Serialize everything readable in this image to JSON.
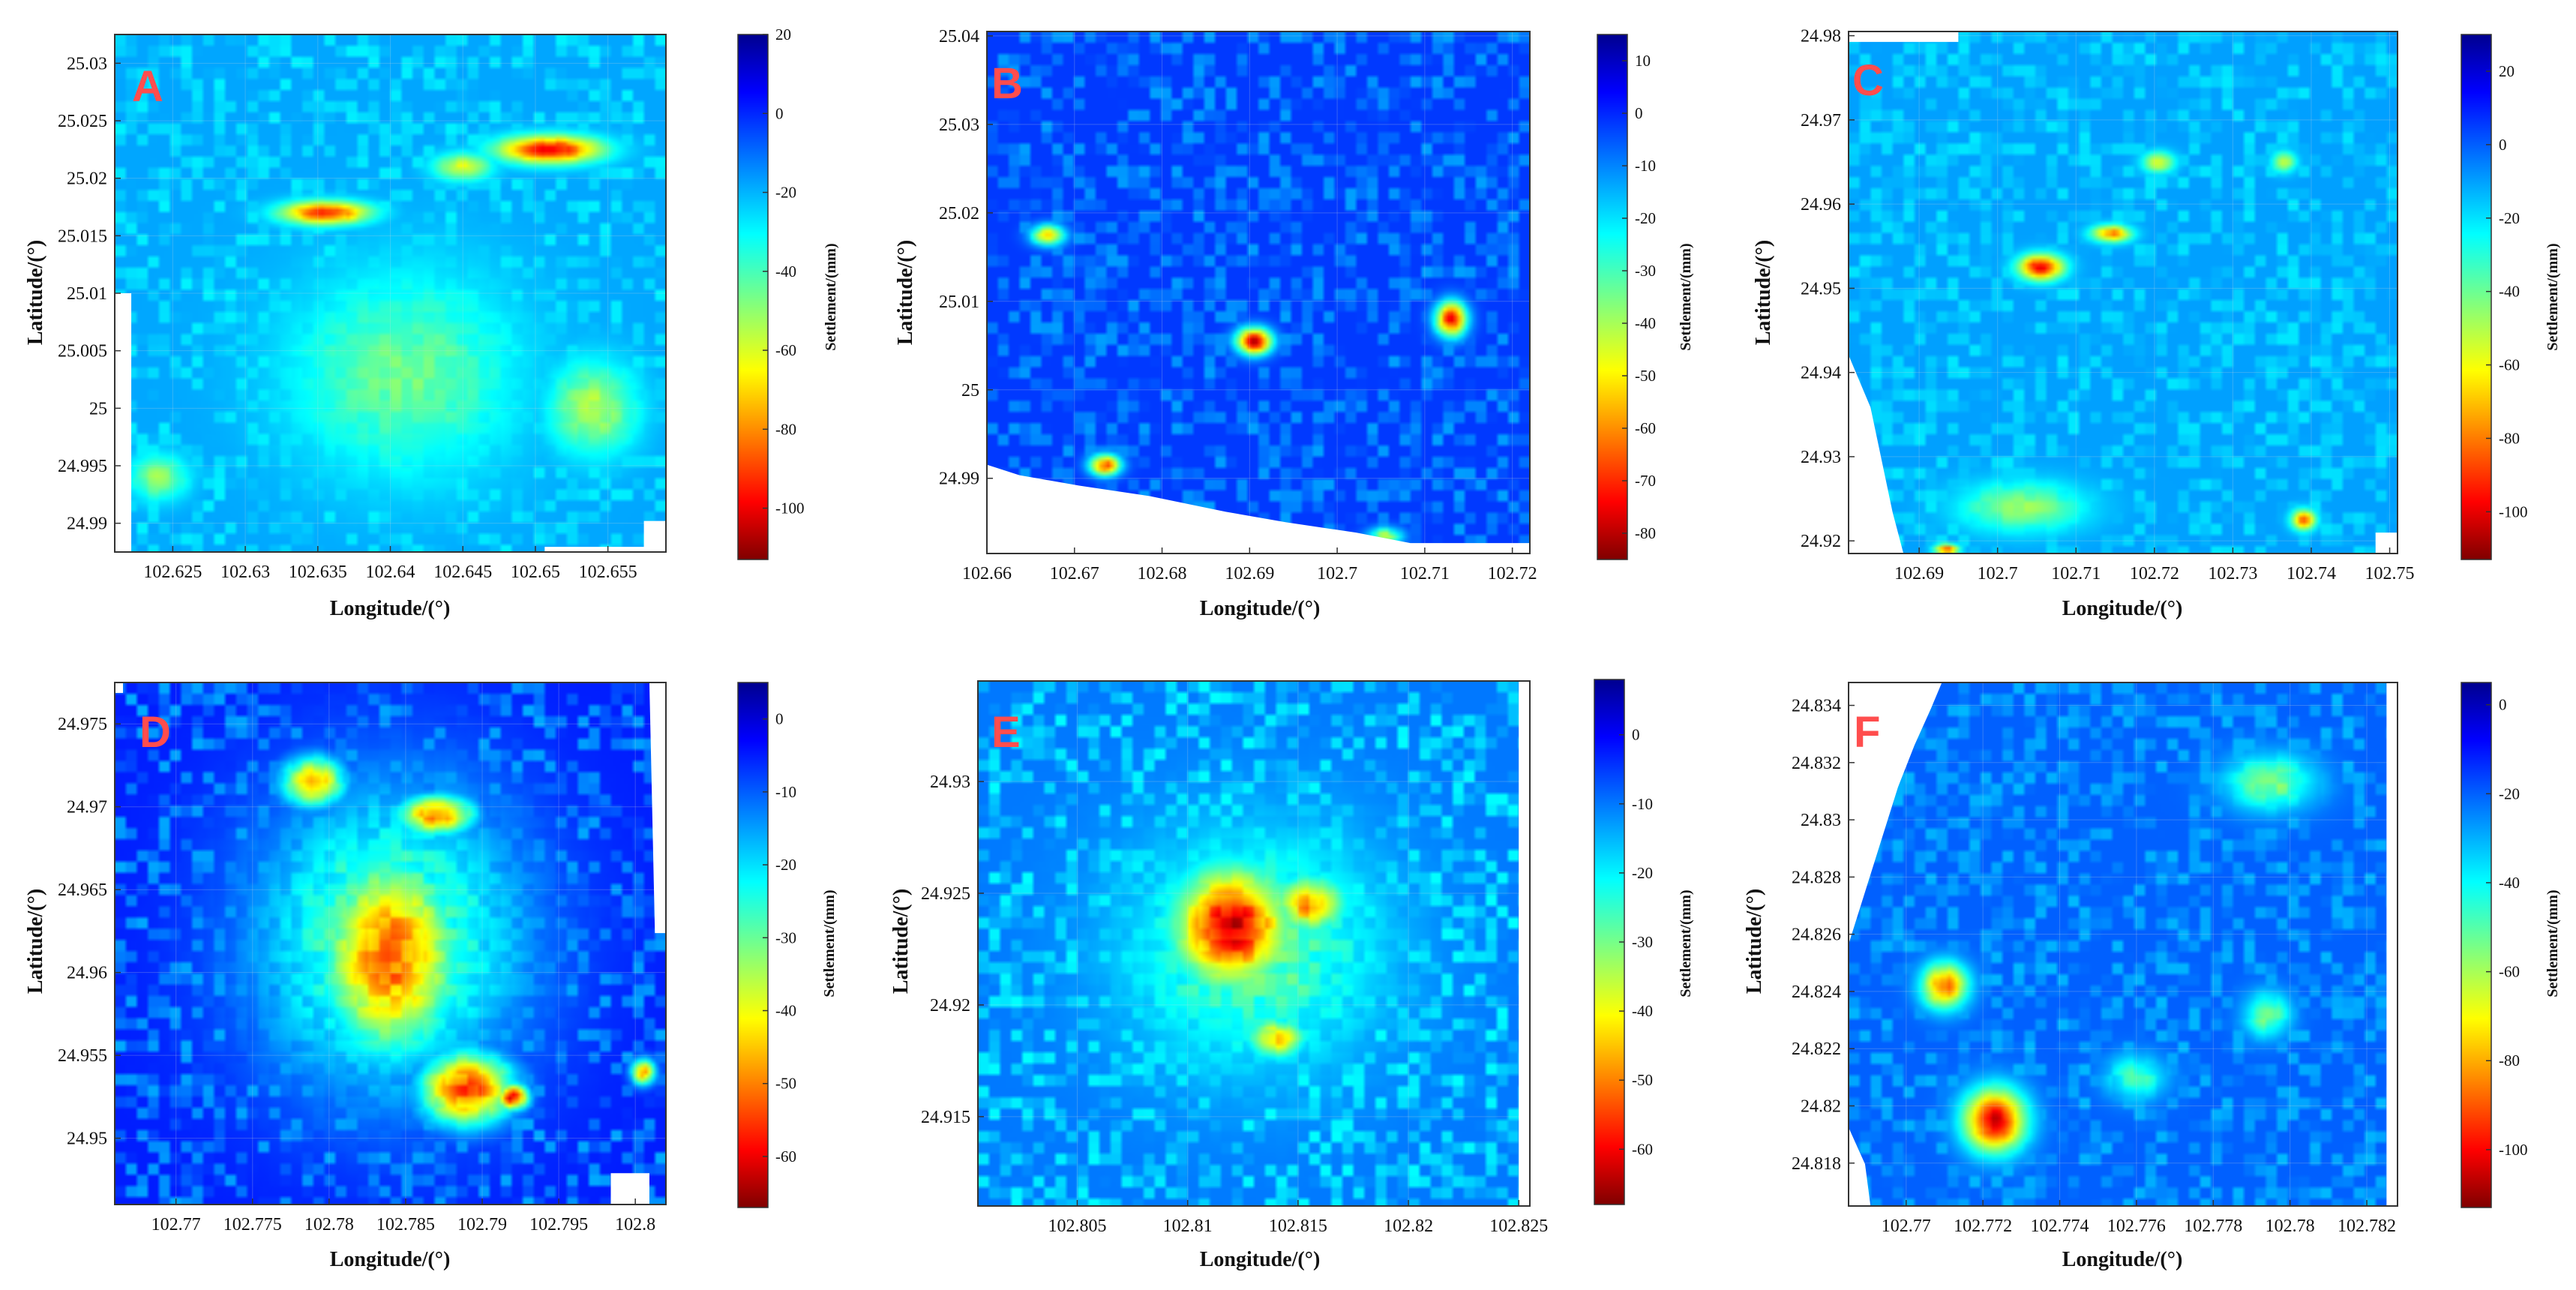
{
  "chart_data": [
    {
      "type": "heatmap",
      "panel_label": "A",
      "xlabel": "Longitude/(°)",
      "ylabel": "Latitude/(°)",
      "colorbar_label": "Settlement/(mm)",
      "xlim": [
        102.621,
        102.659
      ],
      "ylim": [
        24.9875,
        25.0325
      ],
      "x_ticks": [
        "102.625",
        "102.63",
        "102.635",
        "102.64",
        "102.645",
        "102.65",
        "102.655"
      ],
      "y_ticks": [
        "24.99",
        "24.995",
        "25",
        "25.005",
        "25.01",
        "25.015",
        "25.02",
        "25.025",
        "25.03"
      ],
      "colorbar_range": [
        -113,
        20
      ],
      "colorbar_ticks": [
        "20",
        "0",
        "-20",
        "-40",
        "-60",
        "-80",
        "-100"
      ],
      "base_settlement": -18,
      "hotspots": [
        {
          "x": 102.651,
          "y": 25.0225,
          "value": -100,
          "rx": 0.0035,
          "ry": 0.0012
        },
        {
          "x": 102.6355,
          "y": 25.017,
          "value": -95,
          "rx": 0.003,
          "ry": 0.001
        },
        {
          "x": 102.645,
          "y": 25.021,
          "value": -60,
          "rx": 0.002,
          "ry": 0.0012
        },
        {
          "x": 102.641,
          "y": 25.003,
          "value": -45,
          "rx": 0.008,
          "ry": 0.009
        },
        {
          "x": 102.654,
          "y": 25.0,
          "value": -55,
          "rx": 0.003,
          "ry": 0.004
        },
        {
          "x": 102.624,
          "y": 24.994,
          "value": -50,
          "rx": 0.002,
          "ry": 0.002
        }
      ]
    },
    {
      "type": "heatmap",
      "panel_label": "B",
      "xlabel": "Longitude/(°)",
      "ylabel": "Latitude/(°)",
      "colorbar_label": "Settlement/(mm)",
      "xlim": [
        102.66,
        102.722
      ],
      "ylim": [
        24.9815,
        25.0405
      ],
      "x_ticks": [
        "102.66",
        "102.67",
        "102.68",
        "102.69",
        "102.7",
        "102.71",
        "102.72"
      ],
      "y_ticks": [
        "24.99",
        "25",
        "25.01",
        "25.02",
        "25.03",
        "25.04"
      ],
      "colorbar_range": [
        -85,
        15
      ],
      "colorbar_ticks": [
        "10",
        "0",
        "-10",
        "-20",
        "-30",
        "-40",
        "-50",
        "-60",
        "-70",
        "-80"
      ],
      "base_settlement": -2,
      "hotspots": [
        {
          "x": 102.6905,
          "y": 25.0055,
          "value": -80,
          "rx": 0.002,
          "ry": 0.0015
        },
        {
          "x": 102.713,
          "y": 25.008,
          "value": -72,
          "rx": 0.0018,
          "ry": 0.002
        },
        {
          "x": 102.6735,
          "y": 24.9915,
          "value": -65,
          "rx": 0.0018,
          "ry": 0.0012
        },
        {
          "x": 102.667,
          "y": 25.0175,
          "value": -50,
          "rx": 0.002,
          "ry": 0.0012
        },
        {
          "x": 102.7055,
          "y": 24.9835,
          "value": -40,
          "rx": 0.002,
          "ry": 0.001
        }
      ]
    },
    {
      "type": "heatmap",
      "panel_label": "C",
      "xlabel": "Longitude/(°)",
      "ylabel": "Latitude/(°)",
      "colorbar_label": "Settlement/(mm)",
      "xlim": [
        102.681,
        102.751
      ],
      "ylim": [
        24.9185,
        24.9805
      ],
      "x_ticks": [
        "102.69",
        "102.7",
        "102.71",
        "102.72",
        "102.73",
        "102.74",
        "102.75"
      ],
      "y_ticks": [
        "24.92",
        "24.93",
        "24.94",
        "24.95",
        "24.96",
        "24.97",
        "24.98"
      ],
      "colorbar_range": [
        -113,
        30
      ],
      "colorbar_ticks": [
        "20",
        "0",
        "-20",
        "-40",
        "-60",
        "-80",
        "-100"
      ],
      "base_settlement": -10,
      "hotspots": [
        {
          "x": 102.7055,
          "y": 24.9525,
          "value": -100,
          "rx": 0.0028,
          "ry": 0.0015
        },
        {
          "x": 102.7145,
          "y": 24.9565,
          "value": -80,
          "rx": 0.0025,
          "ry": 0.001
        },
        {
          "x": 102.739,
          "y": 24.9225,
          "value": -85,
          "rx": 0.0015,
          "ry": 0.0012
        },
        {
          "x": 102.6935,
          "y": 24.919,
          "value": -90,
          "rx": 0.0015,
          "ry": 0.0006
        },
        {
          "x": 102.7205,
          "y": 24.965,
          "value": -60,
          "rx": 0.002,
          "ry": 0.0012
        },
        {
          "x": 102.7365,
          "y": 24.965,
          "value": -55,
          "rx": 0.0015,
          "ry": 0.0012
        },
        {
          "x": 102.703,
          "y": 24.924,
          "value": -45,
          "rx": 0.008,
          "ry": 0.003
        }
      ]
    },
    {
      "type": "heatmap",
      "panel_label": "D",
      "xlabel": "Longitude/(°)",
      "ylabel": "Latitude/(°)",
      "colorbar_label": "Settlement/(mm)",
      "xlim": [
        102.766,
        102.802
      ],
      "ylim": [
        24.946,
        24.9775
      ],
      "x_ticks": [
        "102.77",
        "102.775",
        "102.78",
        "102.785",
        "102.79",
        "102.795",
        "102.8"
      ],
      "y_ticks": [
        "24.95",
        "24.955",
        "24.96",
        "24.965",
        "24.97",
        "24.975"
      ],
      "colorbar_range": [
        -67,
        5
      ],
      "colorbar_ticks": [
        "0",
        "-10",
        "-20",
        "-30",
        "-40",
        "-50",
        "-60"
      ],
      "base_settlement": -5,
      "hotspots": [
        {
          "x": 102.784,
          "y": 24.961,
          "value": -52,
          "rx": 0.0045,
          "ry": 0.006
        },
        {
          "x": 102.789,
          "y": 24.953,
          "value": -55,
          "rx": 0.003,
          "ry": 0.0022
        },
        {
          "x": 102.787,
          "y": 24.9695,
          "value": -50,
          "rx": 0.0025,
          "ry": 0.0012
        },
        {
          "x": 102.779,
          "y": 24.9715,
          "value": -48,
          "rx": 0.002,
          "ry": 0.0015
        },
        {
          "x": 102.792,
          "y": 24.9525,
          "value": -60,
          "rx": 0.001,
          "ry": 0.0008
        },
        {
          "x": 102.8005,
          "y": 24.954,
          "value": -45,
          "rx": 0.0008,
          "ry": 0.0008
        },
        {
          "x": 102.784,
          "y": 24.962,
          "value": -30,
          "rx": 0.009,
          "ry": 0.0095
        }
      ]
    },
    {
      "type": "heatmap",
      "panel_label": "E",
      "xlabel": "Longitude/(°)",
      "ylabel": "Latitude/(°)",
      "colorbar_label": "Settlement/(mm)",
      "xlim": [
        102.8005,
        102.8255
      ],
      "ylim": [
        24.911,
        24.9345
      ],
      "x_ticks": [
        "102.805",
        "102.81",
        "102.815",
        "102.82",
        "102.825"
      ],
      "y_ticks": [
        "24.915",
        "24.92",
        "24.925",
        "24.93"
      ],
      "colorbar_range": [
        -68,
        8
      ],
      "colorbar_ticks": [
        "0",
        "-10",
        "-20",
        "-30",
        "-40",
        "-50",
        "-60"
      ],
      "base_settlement": -10,
      "hotspots": [
        {
          "x": 102.812,
          "y": 24.9235,
          "value": -62,
          "rx": 0.0025,
          "ry": 0.0025
        },
        {
          "x": 102.8155,
          "y": 24.9245,
          "value": -48,
          "rx": 0.0015,
          "ry": 0.0012
        },
        {
          "x": 102.814,
          "y": 24.9185,
          "value": -45,
          "rx": 0.0012,
          "ry": 0.0008
        },
        {
          "x": 102.813,
          "y": 24.9225,
          "value": -28,
          "rx": 0.006,
          "ry": 0.0055
        }
      ]
    },
    {
      "type": "heatmap",
      "panel_label": "F",
      "xlabel": "Longitude/(°)",
      "ylabel": "Latitude/(°)",
      "colorbar_label": "Settlement/(mm)",
      "xlim": [
        102.7685,
        102.7828
      ],
      "ylim": [
        24.8165,
        24.8348
      ],
      "x_ticks": [
        "102.77",
        "102.772",
        "102.774",
        "102.776",
        "102.778",
        "102.78",
        "102.782"
      ],
      "y_ticks": [
        "24.818",
        "24.82",
        "24.822",
        "24.824",
        "24.826",
        "24.828",
        "24.83",
        "24.832",
        "24.834"
      ],
      "colorbar_range": [
        -113,
        5
      ],
      "colorbar_ticks": [
        "0",
        "-20",
        "-40",
        "-60",
        "-80",
        "-100"
      ],
      "base_settlement": -20,
      "hotspots": [
        {
          "x": 102.7723,
          "y": 24.8195,
          "value": -105,
          "rx": 0.0008,
          "ry": 0.0011
        },
        {
          "x": 102.771,
          "y": 24.8242,
          "value": -88,
          "rx": 0.0006,
          "ry": 0.0008
        },
        {
          "x": 102.7795,
          "y": 24.8313,
          "value": -55,
          "rx": 0.0012,
          "ry": 0.001
        },
        {
          "x": 102.7794,
          "y": 24.8232,
          "value": -55,
          "rx": 0.0006,
          "ry": 0.0008
        },
        {
          "x": 102.776,
          "y": 24.821,
          "value": -48,
          "rx": 0.0008,
          "ry": 0.0008
        }
      ]
    }
  ]
}
